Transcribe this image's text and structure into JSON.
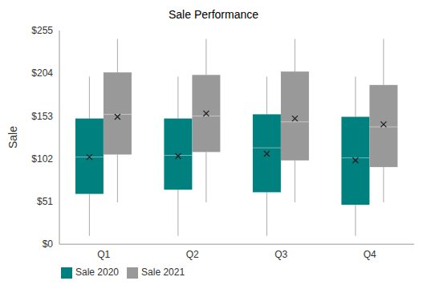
{
  "chart_data": {
    "type": "box",
    "title": "Sale Performance",
    "y_label": "Sale",
    "categories": [
      "Q1",
      "Q2",
      "Q3",
      "Q4"
    ],
    "series": [
      {
        "name": "Sale 2020",
        "color": "#00807f",
        "values": [
          {
            "min": 10,
            "q1": 60,
            "median": 104,
            "q3": 150,
            "max": 200,
            "mean": 104
          },
          {
            "min": 10,
            "q1": 65,
            "median": 106,
            "q3": 150,
            "max": 200,
            "mean": 105
          },
          {
            "min": 10,
            "q1": 62,
            "median": 115,
            "q3": 155,
            "max": 200,
            "mean": 108
          },
          {
            "min": 10,
            "q1": 47,
            "median": 103,
            "q3": 152,
            "max": 200,
            "mean": 100
          }
        ]
      },
      {
        "name": "Sale 2021",
        "color": "#999999",
        "values": [
          {
            "min": 50,
            "q1": 107,
            "median": 155,
            "q3": 205,
            "max": 245,
            "mean": 152
          },
          {
            "min": 50,
            "q1": 110,
            "median": 153,
            "q3": 202,
            "max": 245,
            "mean": 156
          },
          {
            "min": 50,
            "q1": 100,
            "median": 146,
            "q3": 206,
            "max": 245,
            "mean": 150
          },
          {
            "min": 50,
            "q1": 92,
            "median": 140,
            "q3": 190,
            "max": 245,
            "mean": 143
          }
        ]
      }
    ],
    "ylim": [
      0,
      255
    ],
    "yticks": [
      {
        "value": 0,
        "label": "$0"
      },
      {
        "value": 51,
        "label": "$51"
      },
      {
        "value": 102,
        "label": "$102"
      },
      {
        "value": 153,
        "label": "$153"
      },
      {
        "value": 204,
        "label": "$204"
      },
      {
        "value": 255,
        "label": "$255"
      }
    ],
    "grid": false,
    "legend": "bottom-left"
  }
}
